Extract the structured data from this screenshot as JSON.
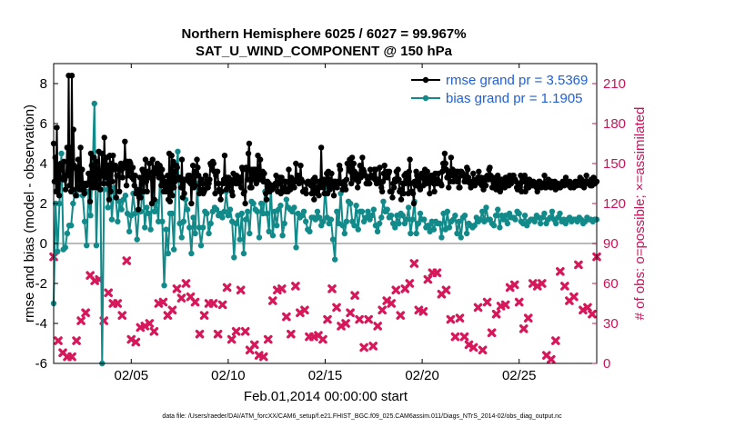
{
  "chart_data": {
    "type": "line",
    "title_line1": "Northern Hemisphere 6025 / 6027 = 99.967%",
    "title_line2": "SAT_U_WIND_COMPONENT @ 150 hPa",
    "xlabel": "Feb.01,2014 00:00:00 start",
    "ylabel": "rmse and bias (model - observation)",
    "ylabel_right": "# of obs: o=possible; ×=assimilated",
    "footnote": "data file: /Users/raeder/DAI/ATM_forcXX/CAM6_setup/f.e21.FHIST_BGC.f09_025.CAM6assim.011/Diags_NTrS_2014-02/obs_diag_output.nc",
    "xlim": [
      1,
      29
    ],
    "ylim": [
      -6,
      9
    ],
    "ylim_right": [
      0,
      225
    ],
    "xticks": [
      5,
      10,
      15,
      20,
      25
    ],
    "xtick_labels": [
      "02/05",
      "02/10",
      "02/15",
      "02/20",
      "02/25"
    ],
    "yticks": [
      "-6",
      "-4",
      "-2",
      "0",
      "2",
      "4",
      "6",
      "8"
    ],
    "yticks_right": [
      "0",
      "30",
      "60",
      "90",
      "120",
      "150",
      "180",
      "210"
    ],
    "zero_line": 0,
    "grid": true,
    "legend_position": "top-right",
    "colors": {
      "rmse": "#000000",
      "bias": "#138a8a",
      "obs": "#d6185a",
      "zero": "#bbbbbb",
      "right_axis": "#c8145a",
      "legend_text": "#1f5fd6"
    },
    "series": [
      {
        "name": "rmse",
        "label": "rmse grand pr = 3.5369",
        "values": [
          5.0,
          3.1,
          4.3,
          2.6,
          5.8,
          2.7,
          3.9,
          2.4,
          3.3,
          4.0,
          3.7,
          3.9,
          3.2,
          4.1,
          3.2,
          2.7,
          3.4,
          4.8,
          3.4,
          8.4,
          2.9,
          4.8,
          2.6,
          8.4,
          2.7,
          5.7,
          3.9,
          3.8,
          2.4,
          3.7,
          2.8,
          4.2,
          3.5,
          2.7,
          4.8,
          2.7,
          3.7,
          3.0,
          2.7,
          2.5,
          3.0,
          2.9,
          3.0,
          3.0,
          3.5,
          3.0,
          2.1,
          4.5,
          3.9,
          3.0,
          2.8,
          4.3,
          3.3,
          3.0,
          4.1,
          2.8,
          2.9,
          4.6,
          3.6,
          2.7,
          3.5,
          4.5,
          3.4,
          3.0,
          5.3,
          3.5,
          3.3,
          4.3,
          3.0,
          3.9,
          2.2,
          4.4,
          2.6,
          4.0,
          3.1,
          4.4,
          3.9,
          3.7,
          3.9,
          2.3,
          3.4,
          3.4,
          3.7,
          2.6,
          3.8,
          4.0,
          3.7,
          3.3,
          3.9,
          3.8,
          5.1,
          4.1,
          2.9,
          4.1,
          3.4,
          3.6,
          4.1,
          4.0,
          3.7,
          3.3,
          3.8,
          3.2,
          2.9,
          3.4,
          2.5,
          2.7,
          2.6,
          1.7,
          2.3,
          3.3,
          2.3,
          2.6,
          3.7,
          3.6,
          2.6,
          3.3,
          4.2,
          3.1,
          2.6,
          3.6,
          3.5,
          4.0,
          3.3,
          3.3,
          2.0,
          4.2,
          3.6,
          2.2,
          3.5,
          3.8,
          3.5,
          4.0,
          3.6,
          3.3,
          3.9,
          3.3,
          2.9,
          3.7,
          3.3,
          2.6,
          3.1,
          2.6,
          2.6,
          3.0,
          3.4,
          2.2,
          4.5,
          2.1,
          2.9,
          4.4,
          2.4,
          4.1,
          2.8,
          3.1,
          3.6,
          3.9,
          3.8,
          3.3,
          3.2,
          3.3,
          3.3,
          2.8,
          4.2,
          2.3,
          3.2,
          2.5,
          3.2,
          3.2,
          3.2,
          3.2,
          3.4,
          3.1,
          3.4,
          3.0,
          2.0,
          3.2,
          3.9,
          2.8,
          3.6,
          2.9,
          3.4,
          4.2,
          3.8,
          3.4,
          2.5,
          2.7,
          3.2,
          3.2,
          3.0,
          2.5,
          2.6,
          2.7,
          3.4,
          3.0,
          2.8,
          2.8,
          3.0,
          3.2,
          4.0,
          3.9,
          3.7,
          4.1,
          4.0,
          3.6,
          2.5,
          3.4,
          3.6,
          3.6,
          3.0,
          2.7,
          2.6,
          2.2,
          2.6,
          3.0,
          3.0,
          3.2,
          4.4,
          3.1,
          2.7,
          3.3,
          2.8,
          3.3,
          2.9,
          3.2,
          3.1,
          2.6,
          2.4,
          3.5,
          3.1,
          3.2,
          3.0,
          3.4,
          3.0,
          3.1,
          3.0,
          3.3,
          3.3,
          2.8,
          3.8,
          3.7,
          2.5,
          2.6,
          2.0,
          3.8,
          3.7,
          3.2,
          4.5,
          5.0,
          2.8,
          3.7,
          2.8,
          3.4,
          3.7,
          3.2,
          3.7,
          3.7,
          3.0,
          3.3,
          4.4,
          3.2,
          3.2,
          4.2,
          3.5,
          3.3,
          3.6,
          3.1,
          3.5,
          3.1,
          2.5,
          2.2,
          3.1,
          2.9,
          3.0,
          2.6,
          2.7,
          2.9,
          2.7,
          2.9,
          2.8,
          2.9,
          3.0,
          3.4,
          3.0,
          2.6,
          3.0,
          3.1,
          3.3,
          2.5,
          3.3,
          2.7,
          2.6,
          2.8,
          3.1,
          3.1,
          2.6,
          2.7,
          2.6,
          3.7,
          3.0,
          2.7,
          3.3,
          3.2,
          2.9,
          3.1,
          2.8,
          3.1,
          4.0,
          3.2,
          3.2,
          3.4,
          3.0,
          3.2,
          3.9,
          3.2,
          3.1,
          2.6,
          2.6,
          2.6,
          2.7,
          2.5,
          3.0,
          3.1,
          3.1,
          3.0,
          3.0,
          2.9,
          2.5,
          3.1,
          3.2,
          2.2,
          3.3,
          2.7,
          2.8,
          2.5,
          3.1,
          2.4,
          2.8,
          3.0,
          4.8,
          3.2,
          2.8,
          3.2,
          2.5,
          3.0,
          3.2,
          3.5,
          2.5,
          3.6,
          3.2,
          2.7,
          2.9,
          3.5,
          2.9,
          3.1,
          2.4,
          3.1,
          3.1,
          3.0,
          2.8,
          3.1,
          3.1,
          3.9,
          3.7,
          3.0,
          3.0,
          2.7,
          2.7,
          3.1,
          2.9,
          2.7,
          3.2,
          4.0,
          4.0,
          3.8,
          4.2,
          3.6,
          3.0,
          4.3,
          3.3,
          4.0,
          3.6,
          3.2,
          3.5,
          3.2,
          2.8,
          3.1,
          3.3,
          3.9,
          3.3,
          3.4,
          4.3,
          3.7,
          3.6,
          3.4,
          3.4,
          3.0,
          3.0,
          3.2,
          3.0,
          3.0,
          3.7,
          3.4,
          3.3,
          3.4,
          3.3,
          3.7,
          3.2,
          3.7,
          3.0,
          3.2,
          3.2,
          3.1,
          3.8,
          3.0,
          2.8,
          2.6,
          3.1,
          3.5,
          3.9,
          3.3,
          3.4,
          3.6,
          3.3,
          3.5,
          3.6,
          2.6,
          2.6,
          2.6,
          2.3,
          3.0,
          2.8,
          3.2,
          3.1,
          3.6,
          3.2,
          3.7,
          3.2,
          2.6,
          2.7,
          2.2,
          2.7,
          3.0,
          2.5,
          3.4,
          3.0,
          3.5,
          3.1,
          3.3,
          2.5,
          3.6,
          4.2,
          3.0,
          2.6,
          2.6,
          2.5,
          2.0,
          3.1,
          2.9,
          3.6,
          3.4,
          3.1,
          3.3,
          2.8,
          2.7,
          3.3,
          3.5,
          3.5,
          2.9,
          3.4,
          3.7,
          3.1,
          3.0,
          3.6,
          3.2,
          3.2,
          2.5,
          3.1,
          3.4,
          3.3,
          3.1,
          3.0,
          2.6,
          3.5,
          3.2,
          3.0,
          3.2,
          3.5,
          3.1,
          3.0,
          3.0,
          2.9,
          3.6,
          4.0,
          3.8,
          4.5,
          4.0,
          3.7,
          3.3,
          3.6,
          2.8,
          3.6,
          3.1,
          4.3,
          3.4,
          3.7,
          3.1,
          3.4,
          3.6,
          3.3,
          3.6,
          3.1,
          3.6,
          2.8,
          2.8,
          3.6,
          3.6,
          3.4,
          3.5,
          3.4,
          3.1,
          3.2,
          3.1,
          3.8,
          3.7,
          3.3,
          3.1,
          3.0,
          2.8,
          3.0,
          3.1,
          3.5,
          3.1,
          2.9,
          3.0,
          3.2,
          3.1,
          3.3,
          3.6,
          3.2,
          3.0,
          3.3,
          2.9,
          3.2,
          2.7,
          3.1,
          3.3,
          2.9,
          3.3,
          3.4,
          3.2,
          3.7,
          3.8,
          3.4,
          3.2,
          2.8,
          3.3,
          3.0,
          2.8,
          2.9,
          2.7,
          3.2,
          3.4,
          2.9,
          3.0,
          2.6,
          3.2,
          3.2,
          2.8,
          3.2,
          3.0,
          2.8,
          3.3,
          3.0,
          3.2,
          3.0,
          2.9,
          3.4,
          3.0,
          3.0,
          3.3,
          3.4,
          3.4,
          3.2,
          3.2,
          3.1,
          2.8,
          2.7,
          2.8,
          3.0,
          2.8,
          3.4,
          2.6,
          3.1,
          3.1,
          3.3,
          3.4,
          2.6,
          2.8,
          3.2,
          3.0,
          2.8,
          3.2,
          2.9,
          3.1,
          3.0,
          2.9,
          3.1,
          2.9,
          3.0,
          3.0,
          2.8,
          2.6,
          2.8,
          3.1,
          3.1,
          2.9,
          2.8,
          2.9,
          3.0,
          2.9,
          3.4,
          2.8,
          2.8,
          3.0,
          3.0,
          3.2,
          3.0,
          3.1,
          2.8,
          3.1,
          3.0,
          2.9,
          2.9,
          3.1,
          2.7,
          3.0,
          3.0,
          3.0,
          2.8,
          2.9,
          2.8,
          2.9,
          3.0,
          3.1,
          3.0,
          2.9,
          3.0,
          3.3,
          3.0,
          3.0,
          3.0,
          2.9,
          3.1,
          2.8,
          3.0,
          2.9,
          2.9,
          2.8,
          3.0,
          3.1,
          2.9,
          2.9,
          3.1,
          3.1,
          3.0,
          3.3,
          2.9,
          3.2,
          3.0,
          2.9,
          2.8,
          3.0,
          3.1,
          3.4,
          3.0,
          3.0,
          3.1,
          3.1,
          2.9,
          3.2,
          2.9,
          3.1,
          3.3,
          3.0,
          3.0,
          3.1,
          3.1
        ]
      },
      {
        "name": "bias",
        "label": "bias grand pr = 1.1905",
        "values": [
          -3.0,
          2.0,
          -0.4,
          2.0,
          4.5,
          -0.3,
          -0.2,
          0.5,
          0.9,
          0.9,
          2.0,
          2.5,
          2.4,
          3.7,
          3.6,
          2.4,
          1.1,
          -0.1,
          2.6,
          1.4,
          3.3,
          7.0,
          -0.1,
          3.2,
          3.5,
          -6.0,
          2.7,
          4.3,
          1.8,
          3.5,
          1.2,
          2.8,
          2.3,
          1.1,
          2.1,
          1.7,
          2.2,
          2.4,
          1.5,
          0.6,
          1.4,
          2.5,
          1.5,
          0.2,
          1.7,
          1.6,
          3.0,
          0.8,
          1.8,
          1.5,
          0.7,
          3.2,
          1.6,
          2.1,
          1.1,
          3.8,
          1.1,
          -2.1,
          0.7,
          -0.5,
          1.5,
          1.5,
          -0.3,
          3.4,
          4.6,
          1.0,
          0.3,
          1.1,
          2.2,
          1.7,
          0.8,
          -0.5,
          1.3,
          0.5,
          3.0,
          0.8,
          -0.1,
          0.8,
          1.6,
          1.5,
          0.5,
          1.0,
          1.6,
          1.8,
          1.7,
          1.4,
          1.5,
          1.3,
          1.6,
          2.6,
          1.4,
          1.7,
          1.1,
          -0.7,
          1.0,
          1.4,
          0.2,
          1.5,
          -0.5,
          1.2,
          1.6,
          0.5,
          2.1,
          2.0,
          1.7,
          1.6,
          0.3,
          2.0,
          1.5,
          2.6,
          1.5,
          0.6,
          2.9,
          0.4,
          1.6,
          0.9,
          1.7,
          1.9,
          0.4,
          1.0,
          2.2,
          1.8,
          1.7,
          1.6,
          1.8,
          -0.2,
          1.5,
          1.3,
          1.4,
          1.6,
          1.1,
          0.7,
          0.6,
          1.3,
          1.3,
          1.2,
          1.6,
          1.3,
          0.9,
          1.1,
          2.8,
          1.3,
          1.0,
          1.2,
          0.2,
          -0.8,
          1.6,
          1.0,
          2.5,
          0.9,
          0.5,
          1.1,
          2.1,
          2.0,
          1.1,
          0.9,
          1.9,
          0.7,
          1.6,
          1.6,
          1.1,
          1.3,
          1.6,
          1.2,
          1.4,
          1.7,
          0.9,
          0.6,
          1.0,
          1.3,
          2.1,
          1.6,
          1.7,
          1.3,
          1.4,
          1.0,
          0.8,
          1.4,
          1.0,
          1.5,
          1.4,
          1.0,
          1.2,
          1.8,
          0.5,
          1.2,
          2.1,
          0.5,
          1.0,
          1.5,
          1.2,
          1.2,
          0.8,
          0.9,
          0.6,
          1.1,
          0.7,
          1.1,
          1.0,
          1.0,
          0.3,
          1.5,
          0.7,
          1.6,
          0.8,
          1.1,
          1.2,
          1.4,
          0.5,
          1.1,
          0.3,
          1.3,
          1.4,
          0.5,
          1.0,
          0.9,
          0.8,
          0.9,
          1.3,
          1.1,
          1.2,
          1.6,
          1.1,
          1.8,
          1.2,
          1.2,
          1.0,
          0.9,
          1.4,
          1.7,
          0.8,
          1.4,
          1.2,
          1.4,
          1.0,
          1.5,
          1.3,
          1.3,
          1.2,
          1.6,
          1.5,
          1.1,
          1.0,
          1.4,
          0.9,
          1.1,
          1.2,
          1.2,
          1.1,
          1.4,
          1.3,
          1.0,
          1.3,
          1.5,
          1.0,
          1.2,
          1.3,
          1.6,
          1.2,
          1.0,
          1.3,
          1.5,
          1.1,
          1.2,
          1.0,
          1.2,
          1.3,
          1.1,
          1.2,
          1.2,
          1.1,
          1.3,
          1.2,
          1.0,
          1.1,
          1.3,
          1.2,
          1.2,
          1.1,
          1.2,
          1.2
        ]
      },
      {
        "name": "obs_assimilated",
        "values": [
          80,
          17,
          8,
          5,
          5,
          17,
          32,
          38,
          66,
          62,
          63,
          32,
          53,
          45,
          45,
          36,
          77,
          18,
          16,
          27,
          28,
          30,
          24,
          45,
          46,
          36,
          40,
          56,
          49,
          60,
          50,
          46,
          22,
          36,
          45,
          45,
          22,
          44,
          57,
          18,
          24,
          55,
          24,
          10,
          14,
          6,
          5,
          18,
          47,
          55,
          56,
          35,
          22,
          58,
          38,
          40,
          20,
          20,
          21,
          18,
          33,
          56,
          42,
          28,
          30,
          38,
          51,
          33,
          12,
          33,
          13,
          28,
          40,
          47,
          45,
          55,
          36,
          56,
          60,
          75,
          40,
          39,
          63,
          68,
          68,
          52,
          55,
          33,
          20,
          34,
          20,
          14,
          12,
          42,
          10,
          46,
          23,
          37,
          43,
          44,
          57,
          59,
          46,
          26,
          34,
          60,
          58,
          60,
          6,
          3,
          17,
          69,
          58,
          47,
          50,
          74,
          40,
          42,
          37,
          80
        ]
      }
    ]
  }
}
